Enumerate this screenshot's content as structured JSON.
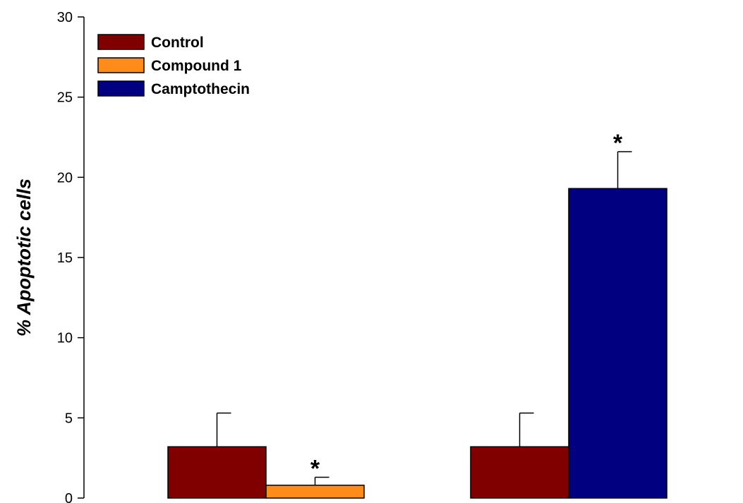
{
  "chart_data": {
    "type": "bar",
    "title": "",
    "xlabel": "",
    "ylabel": "% Apoptotic cells",
    "ylim": [
      0,
      30
    ],
    "yticks": [
      0,
      5,
      10,
      15,
      20,
      25,
      30
    ],
    "grid": false,
    "legend_position": "top-left",
    "groups": [
      {
        "bars": [
          {
            "series": "Control",
            "value": 3.2,
            "error": 2.1,
            "mark": ""
          },
          {
            "series": "Compound 1",
            "value": 0.8,
            "error": 0.5,
            "mark": "*"
          }
        ]
      },
      {
        "bars": [
          {
            "series": "Control",
            "value": 3.2,
            "error": 2.1,
            "mark": ""
          },
          {
            "series": "Camptothecin",
            "value": 19.3,
            "error": 2.3,
            "mark": "*"
          }
        ]
      }
    ],
    "legend": [
      {
        "name": "Control",
        "color": "#800000"
      },
      {
        "name": "Compound 1",
        "color": "#ff8c1a"
      },
      {
        "name": "Camptothecin",
        "color": "#000080"
      }
    ]
  }
}
